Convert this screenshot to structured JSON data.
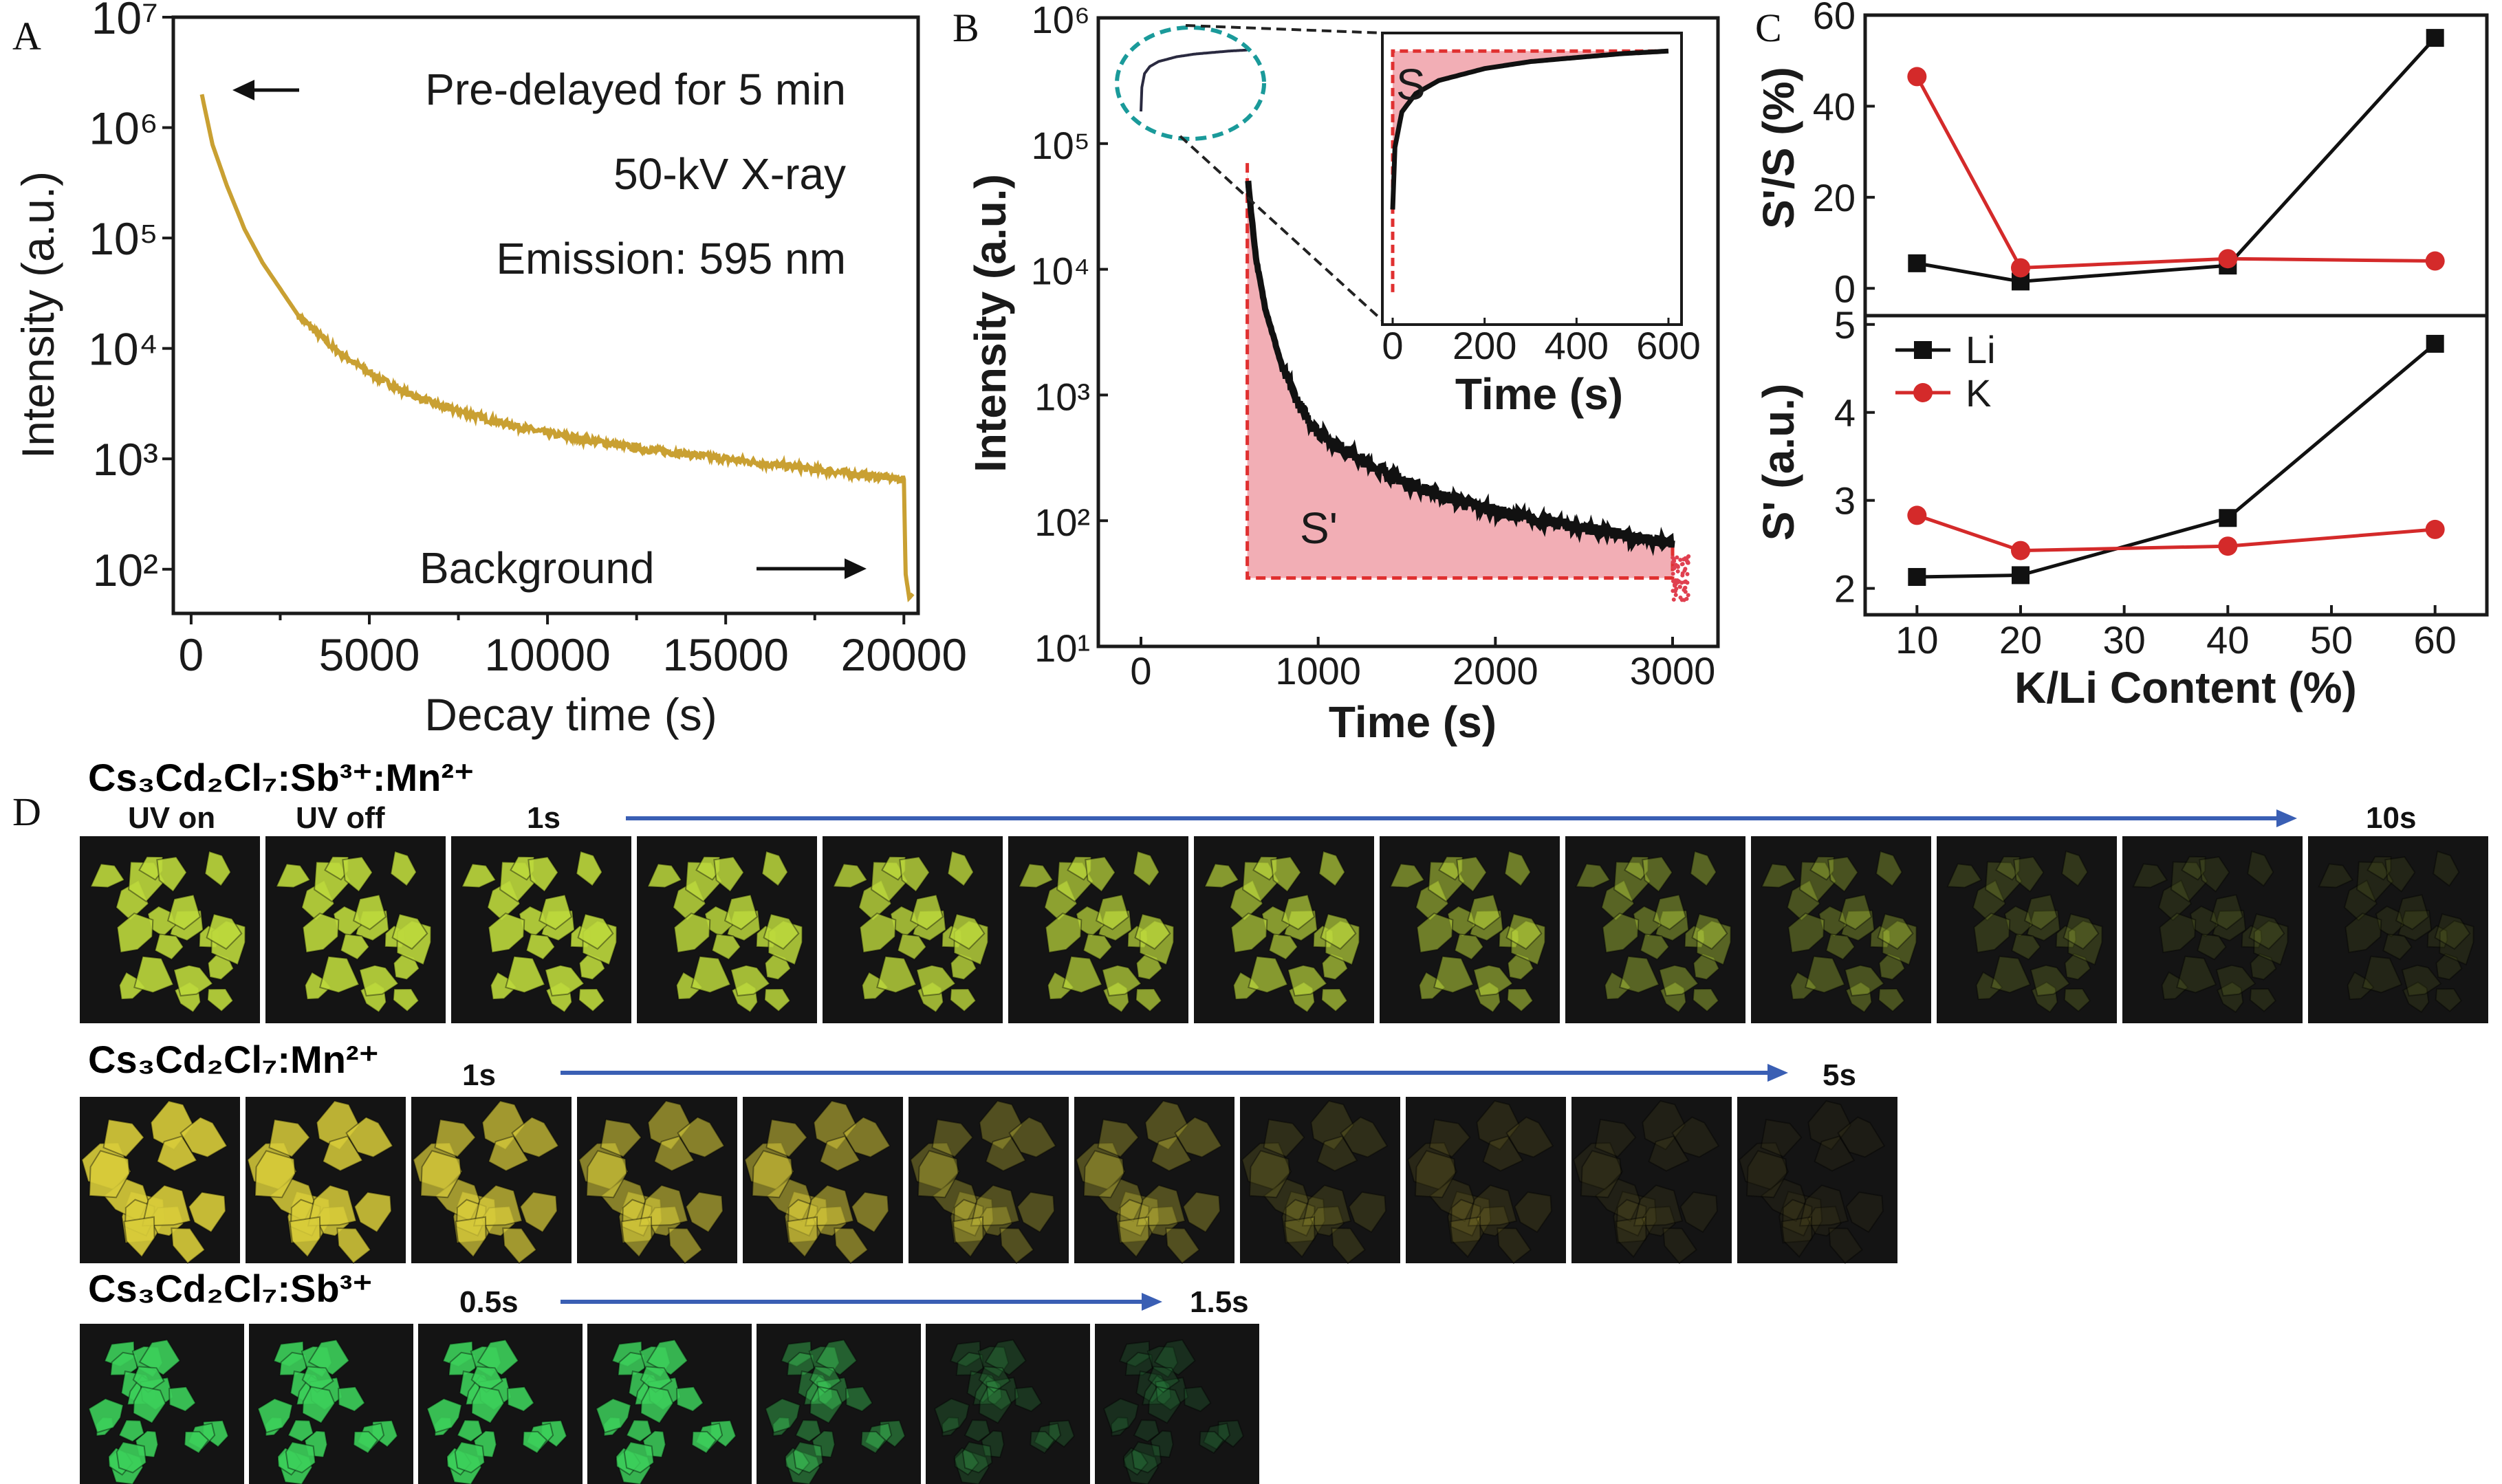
{
  "chart_data": [
    {
      "panel": "A",
      "type": "line",
      "xlabel": "Decay time (s)",
      "ylabel": "Intensity (a.u.)",
      "yscale": "log",
      "xlim": [
        -500,
        20400
      ],
      "ylim_exponent": [
        1.6,
        7
      ],
      "x_ticks": [
        0,
        5000,
        10000,
        15000,
        20000
      ],
      "x_tick_labels": [
        "0",
        "5000",
        "10000",
        "15000",
        "20000"
      ],
      "y_ticks": [
        2,
        3,
        4,
        5,
        6,
        7
      ],
      "y_tick_labels": [
        "10²",
        "10³",
        "10⁴",
        "10⁵",
        "10⁶",
        "10⁷"
      ],
      "annotations": [
        "Pre-delayed for 5 min",
        "50-kV X-ray",
        "Emission: 595 nm",
        "Background"
      ],
      "series_color": "#c9a032",
      "x": [
        300,
        600,
        1000,
        1500,
        2000,
        3000,
        4000,
        5000,
        6000,
        7000,
        8500,
        10000,
        12500,
        15000,
        17500,
        20000,
        20050,
        20150,
        20250
      ],
      "y": [
        2000000,
        700000,
        300000,
        120000,
        60000,
        20000,
        10000,
        6000,
        4000,
        3000,
        2200,
        1700,
        1250,
        1000,
        800,
        650,
        90,
        55,
        60
      ]
    },
    {
      "panel": "B",
      "type": "scatter",
      "xlabel": "Time (s)",
      "ylabel": "Intensity (a.u.)",
      "yscale": "log",
      "xlim": [
        -240,
        3250
      ],
      "ylim_exponent": [
        1,
        6
      ],
      "x_ticks": [
        0,
        1000,
        2000,
        3000
      ],
      "x_tick_labels": [
        "0",
        "1000",
        "2000",
        "3000"
      ],
      "y_ticks": [
        1,
        2,
        3,
        4,
        5,
        6
      ],
      "y_tick_labels": [
        "10¹",
        "10²",
        "10³",
        "10⁴",
        "10⁵",
        "10⁶"
      ],
      "region_labels": [
        "S'",
        "S"
      ],
      "fill_color": "#f0a0a8",
      "dash_color": "#e03030",
      "ellipse_color": "#1a9a9a",
      "charging": {
        "x": [
          0,
          5,
          20,
          50,
          100,
          200,
          300,
          400,
          500,
          600
        ],
        "y": [
          180000,
          280000,
          360000,
          410000,
          450000,
          490000,
          515000,
          530000,
          545000,
          555000
        ]
      },
      "decay": {
        "x": [
          600,
          620,
          650,
          700,
          800,
          900,
          1000,
          1250,
          1500,
          1750,
          2000,
          2250,
          2500,
          2750,
          3000
        ],
        "y": [
          60000,
          30000,
          12000,
          5000,
          1600,
          800,
          500,
          300,
          200,
          150,
          120,
          100,
          88,
          75,
          65
        ]
      },
      "baseline": 35,
      "inset": {
        "xlabel": "Time (s)",
        "x_ticks": [
          0,
          200,
          400,
          600
        ],
        "x_tick_labels": [
          "0",
          "200",
          "400",
          "600"
        ]
      }
    },
    {
      "panel": "C",
      "type": "line",
      "xlabel": "K/Li Content (%)",
      "x_ticks": [
        10,
        20,
        30,
        40,
        50,
        60
      ],
      "x_tick_labels": [
        "10",
        "20",
        "30",
        "40",
        "50",
        "60"
      ],
      "xlim": [
        5,
        65
      ],
      "categories": [
        10,
        20,
        40,
        60
      ],
      "legend": "top-left (lower subplot)",
      "subplots": [
        {
          "ylabel": "S'/S (%)",
          "ylim": [
            -6,
            60
          ],
          "y_ticks": [
            0,
            20,
            40,
            60
          ],
          "y_tick_labels": [
            "0",
            "20",
            "40",
            "60"
          ],
          "series": [
            {
              "name": "Li",
              "color": "#111111",
              "marker": "square",
              "values": [
                5.5,
                1.5,
                5,
                55
              ]
            },
            {
              "name": "K",
              "color": "#d42a2a",
              "marker": "circle",
              "values": [
                46.5,
                4.5,
                6.5,
                6
              ]
            }
          ]
        },
        {
          "ylabel": "S' (a.u.)",
          "ylim": [
            1.7,
            5.1
          ],
          "y_ticks": [
            2,
            3,
            4,
            5
          ],
          "y_tick_labels": [
            "2",
            "3",
            "4",
            "5"
          ],
          "series": [
            {
              "name": "Li",
              "color": "#111111",
              "marker": "square",
              "values": [
                2.13,
                2.15,
                2.8,
                4.78
              ]
            },
            {
              "name": "K",
              "color": "#d42a2a",
              "marker": "circle",
              "values": [
                2.83,
                2.43,
                2.48,
                2.67
              ]
            }
          ]
        }
      ]
    }
  ],
  "panel_letters": {
    "a": "A",
    "b": "B",
    "c": "C",
    "d": "D"
  },
  "panel_d": {
    "arrow_color": "#3a5fb4",
    "rows": [
      {
        "formula": "Cs₃Cd₂Cl₇:Sb³⁺:Mn²⁺",
        "color": "#e8a21a",
        "labels": {
          "uv_on": "UV on",
          "uv_off": "UV off",
          "start": "1s",
          "end": "10s"
        },
        "glow_color": "#bcd83c",
        "brightness": [
          1,
          1,
          1,
          0.95,
          0.9,
          0.8,
          0.75,
          0.6,
          0.45,
          0.35,
          0.2,
          0.12,
          0.1
        ]
      },
      {
        "formula": "Cs₃Cd₂Cl₇:Mn²⁺",
        "color": "#e2e22c",
        "labels": {
          "start": "1s",
          "end": "5s"
        },
        "glow_color": "#d8cc3a",
        "brightness": [
          1,
          0.95,
          0.8,
          0.65,
          0.6,
          0.35,
          0.35,
          0.15,
          0.12,
          0.08,
          0.06
        ]
      },
      {
        "formula": "Cs₃Cd₂Cl₇:Sb³⁺",
        "color": "#22a84a",
        "labels": {
          "start": "0.5s",
          "end": "1.5s"
        },
        "glow_color": "#3ccf5a",
        "brightness": [
          1,
          1,
          1,
          0.95,
          0.45,
          0.2,
          0.15
        ]
      }
    ]
  }
}
